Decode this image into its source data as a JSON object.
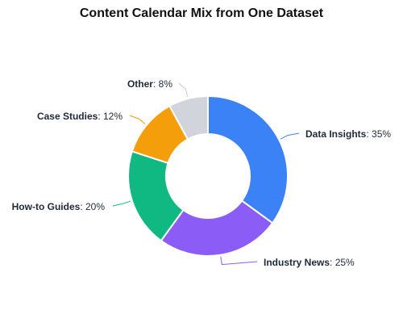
{
  "chart_data": {
    "type": "pie",
    "title": "Content Calendar Mix from One Dataset",
    "slices": [
      {
        "label": "Data Insights",
        "value": 35,
        "value_label": "35%",
        "color": "#3b82f6"
      },
      {
        "label": "Industry News",
        "value": 25,
        "value_label": "25%",
        "color": "#8b5cf6"
      },
      {
        "label": "How-to Guides",
        "value": 20,
        "value_label": "20%",
        "color": "#10b981"
      },
      {
        "label": "Case Studies",
        "value": 12,
        "value_label": "12%",
        "color": "#f59e0b"
      },
      {
        "label": "Other",
        "value": 8,
        "value_label": "8%",
        "color": "#d1d5db"
      }
    ]
  }
}
